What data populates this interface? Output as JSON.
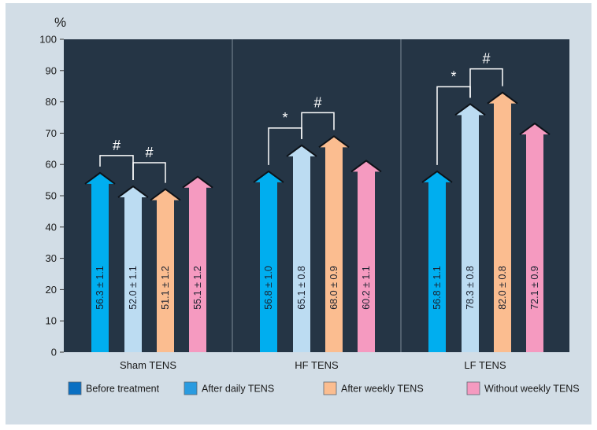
{
  "chart_data": {
    "type": "bar",
    "ylabel": "%",
    "ylim": [
      0,
      100
    ],
    "yticks": [
      0,
      10,
      20,
      30,
      40,
      50,
      60,
      70,
      80,
      90,
      100
    ],
    "grid": false,
    "legend_position": "bottom",
    "categories": [
      "Sham TENS",
      "HF TENS",
      "LF TENS"
    ],
    "series": [
      {
        "name": "Before treatment",
        "color": "#00aeef",
        "values": [
          56.3,
          56.8,
          56.8
        ],
        "labels": [
          "56.3 ± 1.1",
          "56.8 ± 1.0",
          "56.8 ± 1.1"
        ]
      },
      {
        "name": "After daily TENS",
        "color": "#bcdcf2",
        "values": [
          52.0,
          65.1,
          78.3
        ],
        "labels": [
          "52.0 ± 1.1",
          "65.1 ± 0.8",
          "78.3 ± 0.8"
        ]
      },
      {
        "name": "After weekly TENS",
        "color": "#fbbd90",
        "values": [
          51.1,
          68.0,
          82.0
        ],
        "labels": [
          "51.1 ± 1.2",
          "68.0 ± 0.9",
          "82.0 ± 0.8"
        ]
      },
      {
        "name": "Without weekly TENS",
        "color": "#f59ac0",
        "values": [
          55.1,
          60.2,
          72.1
        ],
        "labels": [
          "55.1 ± 1.2",
          "60.2 ± 1.1",
          "72.1 ± 0.9"
        ]
      }
    ],
    "annotations": [
      {
        "group": 0,
        "from": 0,
        "to": 1,
        "symbol": "#"
      },
      {
        "group": 0,
        "from": 1,
        "to": 2,
        "symbol": "#"
      },
      {
        "group": 1,
        "from": 0,
        "to": 1,
        "symbol": "*"
      },
      {
        "group": 1,
        "from": 1,
        "to": 2,
        "symbol": "#"
      },
      {
        "group": 2,
        "from": 0,
        "to": 1,
        "symbol": "*"
      },
      {
        "group": 2,
        "from": 1,
        "to": 2,
        "symbol": "#"
      }
    ]
  },
  "legend": [
    {
      "label": "Before treatment",
      "swatch": "#0a6fc2"
    },
    {
      "label": "After daily TENS",
      "swatch": "#2a9be0"
    },
    {
      "label": "After weekly TENS",
      "swatch": "#fbbd90"
    },
    {
      "label": "Without weekly TENS",
      "swatch": "#f59ac0"
    }
  ]
}
